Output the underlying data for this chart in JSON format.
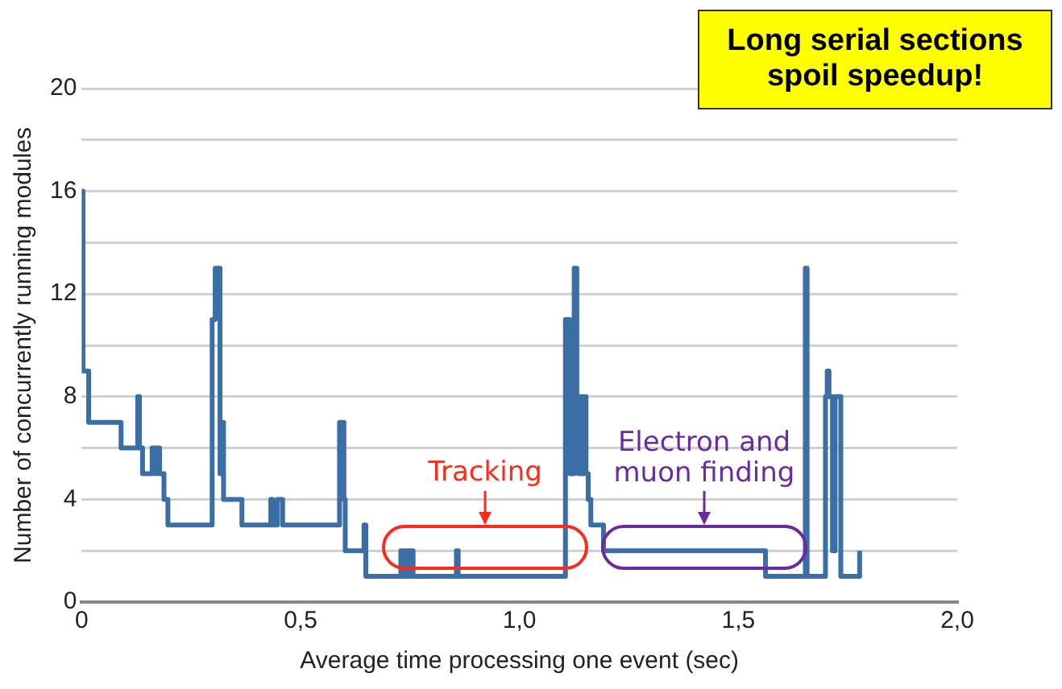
{
  "chart_data": {
    "type": "step",
    "xlabel": "Average time processing one event (sec)",
    "ylabel": "Number of concurrently running modules",
    "x": [
      0,
      0.003,
      0.016,
      0.09,
      0.128,
      0.132,
      0.139,
      0.161,
      0.168,
      0.172,
      0.178,
      0.188,
      0.197,
      0.298,
      0.305,
      0.316,
      0.319,
      0.324,
      0.366,
      0.432,
      0.436,
      0.447,
      0.459,
      0.589,
      0.599,
      0.602,
      0.645,
      0.649,
      0.729,
      0.733,
      0.737,
      0.741,
      0.745,
      0.749,
      0.753,
      0.757,
      0.856,
      0.86,
      1.105,
      1.115,
      1.125,
      1.131,
      1.135,
      1.139,
      1.143,
      1.147,
      1.152,
      1.157,
      1.163,
      1.192,
      1.562,
      1.653,
      1.657,
      1.699,
      1.703,
      1.707,
      1.715,
      1.721,
      1.734,
      1.777
    ],
    "series": [
      {
        "color": "#3a6ea5",
        "values": [
          16,
          9,
          7,
          6,
          8,
          6,
          5,
          6,
          5,
          6,
          5,
          4,
          3,
          11,
          13,
          5,
          7,
          4,
          3,
          4,
          3,
          4,
          3,
          7,
          4,
          2,
          3,
          1,
          2,
          1,
          2,
          1,
          2,
          1,
          2,
          1,
          2,
          1,
          11,
          5,
          13,
          8,
          5,
          8,
          5,
          8,
          5,
          4,
          3,
          2,
          1,
          13,
          1,
          8,
          9,
          8,
          2,
          8,
          1,
          2
        ]
      }
    ],
    "xlim": [
      0,
      2
    ],
    "xticks": [
      0,
      {
        "value": 0.5,
        "label": "0,5"
      },
      {
        "value": 1,
        "label": "1,0"
      },
      {
        "value": 1.5,
        "label": "1,5"
      },
      {
        "value": 2,
        "label": "2,0"
      }
    ],
    "ylim": [
      0,
      20
    ],
    "yticks": [
      0,
      {
        "value": 2,
        "label": null
      },
      4,
      {
        "value": 6,
        "label": null
      },
      8,
      {
        "value": 10,
        "label": null
      },
      12,
      {
        "value": 14,
        "label": null
      },
      16,
      {
        "value": 18,
        "label": null
      },
      20
    ],
    "grid": "y",
    "legend": false,
    "marker": "none",
    "line_style": "solid",
    "annotations": [
      "Tracking",
      "Electron and muon finding",
      "Long serial sections spoil speedup!"
    ]
  }
}
